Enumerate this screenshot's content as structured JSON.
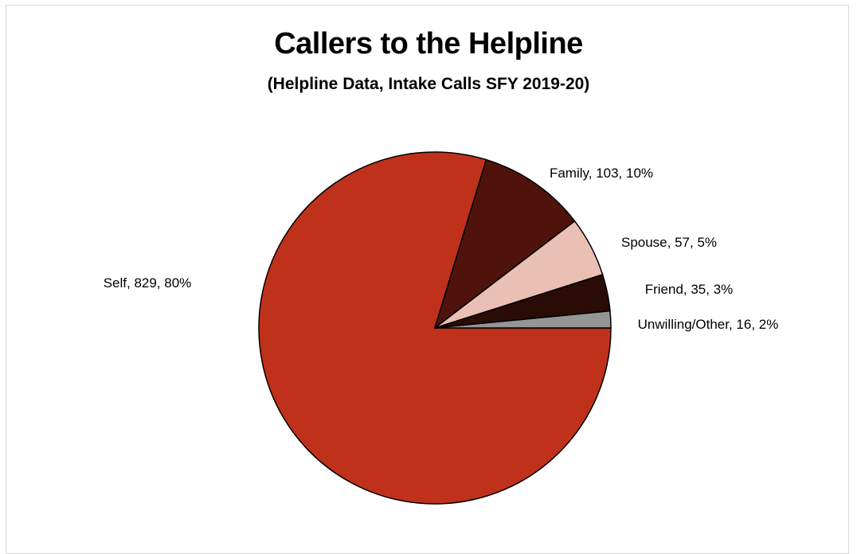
{
  "chart_data": {
    "type": "pie",
    "title": "Callers to the Helpline",
    "subtitle": "(Helpline Data, Intake Calls SFY 2019-20)",
    "slices": [
      {
        "name": "Self",
        "value": 829,
        "percent": "80%",
        "label": "Self, 829, 80%",
        "color": "#c0311c"
      },
      {
        "name": "Family",
        "value": 103,
        "percent": "10%",
        "label": "Family, 103, 10%",
        "color": "#4f130b"
      },
      {
        "name": "Spouse",
        "value": 57,
        "percent": "5%",
        "label": "Spouse, 57, 5%",
        "color": "#eabfb4"
      },
      {
        "name": "Friend",
        "value": 35,
        "percent": "3%",
        "label": "Friend, 35, 3%",
        "color": "#2b0b06"
      },
      {
        "name": "Unwilling/Other",
        "value": 16,
        "percent": "2%",
        "label": "Unwilling/Other, 16, 2%",
        "color": "#959595"
      }
    ],
    "legend": "none",
    "labels": "outside-end"
  }
}
